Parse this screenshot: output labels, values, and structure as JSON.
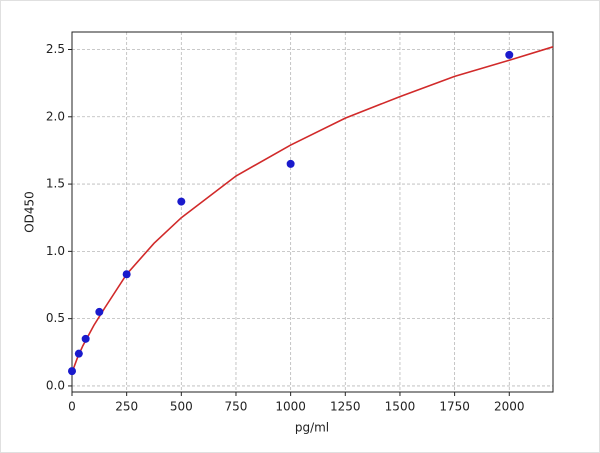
{
  "chart_data": {
    "type": "scatter",
    "x_label": "pg/ml",
    "y_label": "OD450",
    "xlim": [
      0,
      2200
    ],
    "ylim": [
      -0.045,
      2.63
    ],
    "xticks": [
      0,
      250,
      500,
      750,
      1000,
      1250,
      1500,
      1750,
      2000
    ],
    "yticks": [
      {
        "value": 0,
        "label": "0.0"
      },
      {
        "value": 0.5,
        "label": "0.5"
      },
      {
        "value": 1,
        "label": "1.0"
      },
      {
        "value": 1.5,
        "label": "1.5"
      },
      {
        "value": 2,
        "label": "2.0"
      },
      {
        "value": 2.5,
        "label": "2.5"
      }
    ],
    "grid": true,
    "series": [
      {
        "style": "points",
        "color": "#1a1acc",
        "x": [
          0,
          31.25,
          62.5,
          125,
          250,
          500,
          1000,
          2000
        ],
        "values": [
          0.11,
          0.24,
          0.35,
          0.55,
          0.83,
          1.37,
          1.65,
          2.46
        ]
      },
      {
        "style": "line",
        "color": "#d12a2a",
        "x": [
          0,
          25,
          50,
          100,
          150,
          250,
          375,
          500,
          750,
          1000,
          1250,
          1500,
          1750,
          2000,
          2200
        ],
        "values": [
          0.1,
          0.21,
          0.3,
          0.45,
          0.58,
          0.83,
          1.06,
          1.25,
          1.56,
          1.79,
          1.99,
          2.15,
          2.3,
          2.42,
          2.52
        ]
      }
    ]
  }
}
